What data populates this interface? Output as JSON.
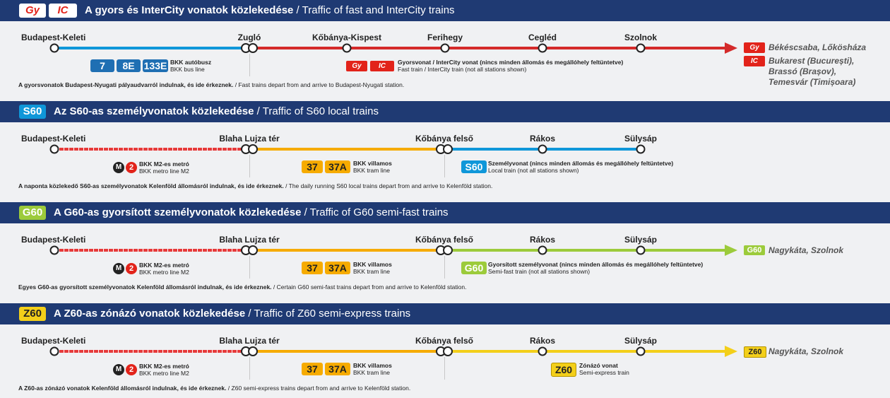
{
  "sections": {
    "gyic": {
      "badge_gy": "Gy",
      "badge_ic": "IC",
      "title_hu": "A gyors és InterCity vonatok közlekedése",
      "title_en": " / Traffic of fast and InterCity trains",
      "stations": [
        "Budapest-Keleti",
        "Zugló",
        "Kőbánya-Kispest",
        "Ferihegy",
        "Cegléd",
        "Szolnok"
      ],
      "bus_numbers": [
        "7",
        "8E",
        "133E"
      ],
      "bus_hu": "BKK autóbusz",
      "bus_en": "BKK bus line",
      "train_hu": "Gyorsvonat / InterCity vonat (nincs minden állomás és megállóhely feltüntetve)",
      "train_en": "Fast train / InterCity train (not all stations shown)",
      "dest1": "Békéscsaba, Lőkösháza",
      "dest2": [
        "Bukarest (București),",
        "Brassó (Brașov),",
        "Temesvár (Timișoara)"
      ],
      "note_hu": "A gyorsvonatok Budapest-Nyugati pályaudvarról indulnak, és ide érkeznek.",
      "note_en": " / Fast trains depart from and arrive to Budapest-Nyugati station."
    },
    "s60": {
      "badge": "S60",
      "title_hu": "Az S60-as személyvonatok közlekedése",
      "title_en": " / Traffic of S60 local trains",
      "stations": [
        "Budapest-Keleti",
        "Blaha Lujza tér",
        "Kőbánya felső",
        "Rákos",
        "Sülysáp"
      ],
      "metro_hu": "BKK M2-es metró",
      "metro_en": "BKK metro line M2",
      "tram_numbers": [
        "37",
        "37A"
      ],
      "tram_hu": "BKK villamos",
      "tram_en": "BKK tram line",
      "train_hu": "Személyvonat (nincs minden állomás és megállóhely feltüntetve)",
      "train_en": "Local train (not all stations shown)",
      "note_hu": "A naponta közlekedő S60-as személyvonatok Kelenföld állomásról indulnak, és ide érkeznek.",
      "note_en": " / The daily running S60 local trains depart from and arrive to Kelenföld station."
    },
    "g60": {
      "badge": "G60",
      "title_hu": "A G60-as gyorsított személyvonatok közlekedése",
      "title_en": " / Traffic of G60 semi-fast trains",
      "stations": [
        "Budapest-Keleti",
        "Blaha Lujza tér",
        "Kőbánya felső",
        "Rákos",
        "Sülysáp"
      ],
      "metro_hu": "BKK M2-es metró",
      "metro_en": "BKK metro line M2",
      "tram_numbers": [
        "37",
        "37A"
      ],
      "tram_hu": "BKK villamos",
      "tram_en": "BKK tram line",
      "train_hu": "Gyorsított személyvonat (nincs minden állomás és megállóhely feltüntetve)",
      "train_en": "Semi-fast train (not all stations shown)",
      "dest": "Nagykáta, Szolnok",
      "note_hu": "Egyes G60-as gyorsított személyvonatok Kelenföld állomásról indulnak, és ide érkeznek.",
      "note_en": " / Certain G60 semi-fast trains depart from and arrive to Kelenföld station."
    },
    "z60": {
      "badge": "Z60",
      "title_hu": "A Z60-as zónázó vonatok közlekedése",
      "title_en": " / Traffic of Z60 semi-express trains",
      "stations": [
        "Budapest-Keleti",
        "Blaha Lujza tér",
        "Kőbánya felső",
        "Rákos",
        "Sülysáp"
      ],
      "metro_hu": "BKK M2-es metró",
      "metro_en": "BKK metro line M2",
      "tram_numbers": [
        "37",
        "37A"
      ],
      "tram_hu": "BKK villamos",
      "tram_en": "BKK tram line",
      "train_hu": "Zónázó vonat",
      "train_en": "Semi-express train",
      "dest": "Nagykáta, Szolnok",
      "note_hu": "A Z60-as zónázó vonatok Kelenföld állomásról indulnak, és ide érkeznek.",
      "note_en": " / Z60 semi-express trains depart from and arrive to Kelenföld station."
    }
  },
  "metro_symbol": "M",
  "metro_line": "2",
  "colors": {
    "header": "#1f3a73",
    "blue": "#0f97d9",
    "red": "#d42a2a",
    "tram": "#f6ab00",
    "g60": "#9ccb3b",
    "z60": "#f3cf1a",
    "bus": "#1f6fb3"
  }
}
